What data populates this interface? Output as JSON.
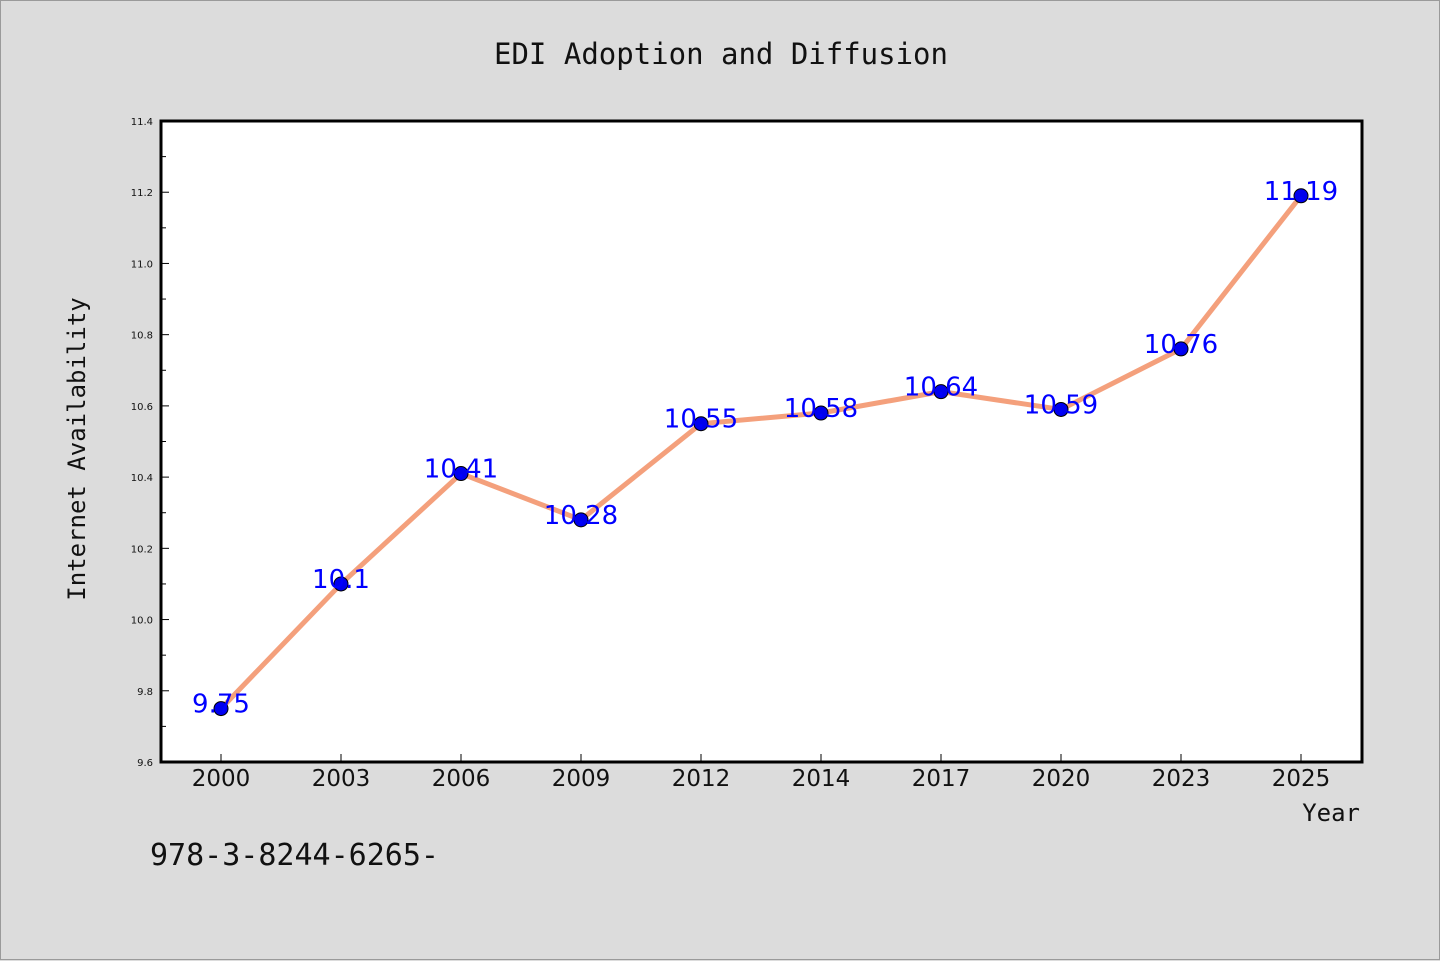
{
  "footer_text": "978-3-8244-6265-",
  "colors": {
    "line": "#f4a07c",
    "marker": "#0000ee",
    "label": "#0000ff"
  },
  "chart_data": {
    "type": "line",
    "title": "EDI Adoption and Diffusion",
    "xlabel": "Year",
    "ylabel": "Internet Availability",
    "categories": [
      "2000",
      "2003",
      "2006",
      "2009",
      "2012",
      "2014",
      "2017",
      "2020",
      "2023",
      "2025"
    ],
    "values": [
      9.75,
      10.1,
      10.41,
      10.28,
      10.55,
      10.58,
      10.64,
      10.59,
      10.76,
      11.19
    ],
    "value_labels": [
      "9.75",
      "10.1",
      "10.41",
      "10.28",
      "10.55",
      "10.58",
      "10.64",
      "10.59",
      "10.76",
      "11.19"
    ],
    "ylim": [
      9.6,
      11.4
    ],
    "yticks": [
      "9.6",
      "9.8",
      "10.0",
      "10.2",
      "10.4",
      "10.6",
      "10.8",
      "11.0",
      "11.2",
      "11.4"
    ],
    "grid": false,
    "legend": "none"
  }
}
